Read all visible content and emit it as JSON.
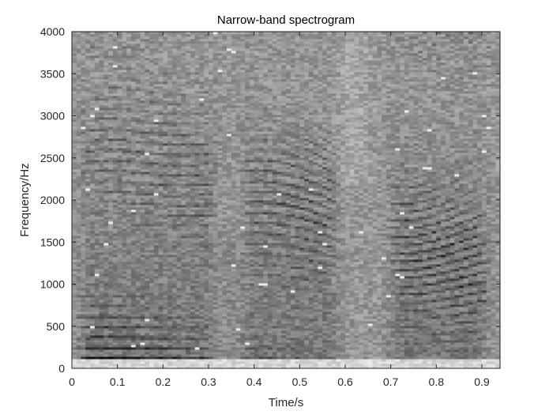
{
  "chart_data": {
    "type": "heatmap",
    "subtype": "spectrogram",
    "title": "Narrow-band spectrogram",
    "xlabel": "Time/s",
    "ylabel": "Frequency/Hz",
    "xlim": [
      0,
      0.94
    ],
    "ylim": [
      0,
      4000
    ],
    "x_ticks": [
      0,
      0.1,
      0.2,
      0.3,
      0.4,
      0.5,
      0.6,
      0.7,
      0.8,
      0.9
    ],
    "x_tick_labels": [
      "0",
      "0.1",
      "0.2",
      "0.3",
      "0.4",
      "0.5",
      "0.6",
      "0.7",
      "0.8",
      "0.9"
    ],
    "y_ticks": [
      0,
      500,
      1000,
      1500,
      2000,
      2500,
      3000,
      3500,
      4000
    ],
    "y_tick_labels": [
      "0",
      "500",
      "1000",
      "1500",
      "2000",
      "2500",
      "3000",
      "3500",
      "4000"
    ],
    "colormap": "gray",
    "grid": false,
    "fundamental_hz_approx": 115,
    "voiced_segments_s": [
      [
        0.0,
        0.33
      ],
      [
        0.36,
        0.6
      ],
      [
        0.68,
        0.93
      ]
    ],
    "colors": {
      "axis": "#262626",
      "background": "#ffffff",
      "low_energy": "#0a0a0a",
      "high_energy": "#f0f0f0"
    }
  }
}
